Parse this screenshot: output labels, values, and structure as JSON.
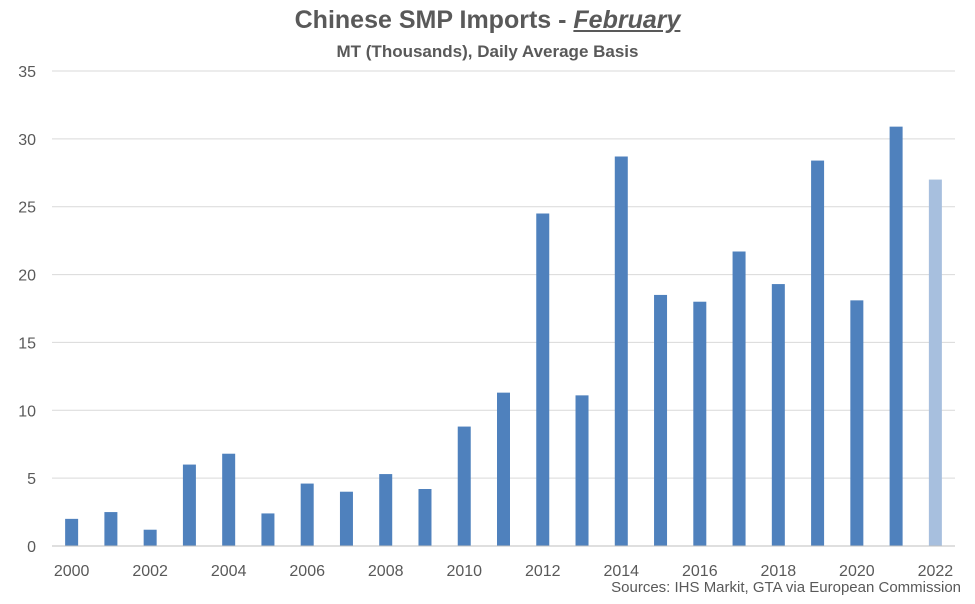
{
  "title": {
    "main": "Chinese SMP Imports - ",
    "emphasis": "February"
  },
  "subtitle": "MT (Thousands), Daily Average Basis",
  "source": "Sources: IHS Markit, GTA via European Commission",
  "colors": {
    "bar": "#4f81bd",
    "bar_forecast": "#a7bfde",
    "grid": "#d9d9d9",
    "axis": "#bfbfbf"
  },
  "chart_data": {
    "type": "bar",
    "title": "Chinese SMP Imports - February",
    "subtitle": "MT (Thousands), Daily Average Basis",
    "categories": [
      "2000",
      "2001",
      "2002",
      "2003",
      "2004",
      "2005",
      "2006",
      "2007",
      "2008",
      "2009",
      "2010",
      "2011",
      "2012",
      "2013",
      "2014",
      "2015",
      "2016",
      "2017",
      "2018",
      "2019",
      "2020",
      "2021",
      "2022"
    ],
    "tick_labels": [
      "2000",
      "2002",
      "2004",
      "2006",
      "2008",
      "2010",
      "2012",
      "2014",
      "2016",
      "2018",
      "2020",
      "2022"
    ],
    "values": [
      2.0,
      2.5,
      1.2,
      6.0,
      6.8,
      2.4,
      4.6,
      4.0,
      5.3,
      4.2,
      8.8,
      11.3,
      24.5,
      11.1,
      28.7,
      18.5,
      18.0,
      21.7,
      19.3,
      28.4,
      18.1,
      30.9,
      27.0
    ],
    "highlight": [
      "2022"
    ],
    "ylim": [
      0,
      35
    ],
    "yticks": [
      0,
      5,
      10,
      15,
      20,
      25,
      30,
      35
    ],
    "grid": true,
    "xlabel": "",
    "ylabel": ""
  }
}
